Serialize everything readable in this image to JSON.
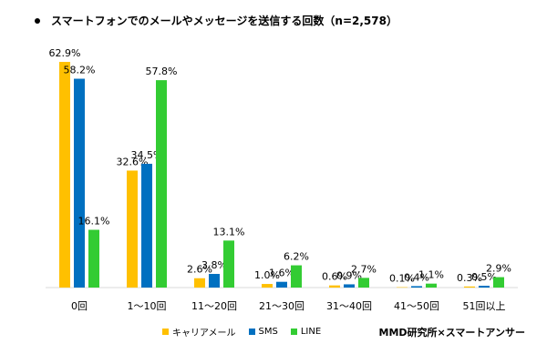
{
  "chart_data": {
    "type": "bar",
    "title": "スマートフォンでのメールやメッセージを送信する回数（n=2,578）",
    "categories": [
      "0回",
      "1～10回",
      "11～20回",
      "21～30回",
      "31～40回",
      "41～50回",
      "51回以上"
    ],
    "series": [
      {
        "name": "キャリアメール",
        "color": "#FFC000",
        "values": [
          62.9,
          32.6,
          2.6,
          1.0,
          0.6,
          0.1,
          0.3
        ]
      },
      {
        "name": "SMS",
        "color": "#0070C0",
        "values": [
          58.2,
          34.5,
          3.8,
          1.6,
          0.9,
          0.4,
          0.5
        ]
      },
      {
        "name": "LINE",
        "color": "#33CC33",
        "values": [
          16.1,
          57.8,
          13.1,
          6.2,
          2.7,
          1.1,
          2.9
        ]
      }
    ],
    "value_suffix": "%",
    "ylim": [
      0,
      70
    ],
    "grid": false,
    "legend_position": "bottom"
  },
  "source": "MMD研究所×スマートアンサー"
}
